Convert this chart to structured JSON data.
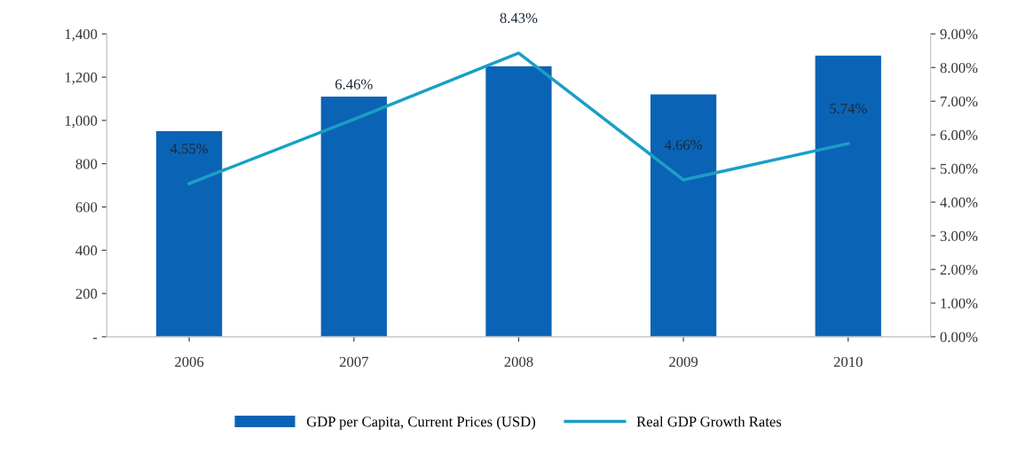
{
  "chart_data": {
    "type": "bar",
    "categories": [
      "2006",
      "2007",
      "2008",
      "2009",
      "2010"
    ],
    "series": [
      {
        "name": "GDP per Capita, Current Prices (USD)",
        "color": "#0b63b5",
        "values": [
          950,
          1110,
          1250,
          1120,
          1300
        ]
      },
      {
        "name": "Real GDP Growth Rates",
        "type": "line",
        "axis": "y2",
        "color": "#1a9fc6",
        "values": [
          4.55,
          6.46,
          8.43,
          4.66,
          5.74
        ],
        "value_labels": [
          "4.55%",
          "6.46%",
          "8.43%",
          "4.66%",
          "5.74%"
        ]
      }
    ],
    "ylim": [
      0,
      1400
    ],
    "yticks": [
      {
        "value": 0,
        "label": "-"
      },
      {
        "value": 200,
        "label": "200"
      },
      {
        "value": 400,
        "label": "400"
      },
      {
        "value": 600,
        "label": "600"
      },
      {
        "value": 800,
        "label": "800"
      },
      {
        "value": 1000,
        "label": "1,000"
      },
      {
        "value": 1200,
        "label": "1,200"
      },
      {
        "value": 1400,
        "label": "1,400"
      }
    ],
    "y2lim": [
      0,
      9
    ],
    "y2ticks": [
      {
        "value": 0,
        "label": "0.00%"
      },
      {
        "value": 1,
        "label": "1.00%"
      },
      {
        "value": 2,
        "label": "2.00%"
      },
      {
        "value": 3,
        "label": "3.00%"
      },
      {
        "value": 4,
        "label": "4.00%"
      },
      {
        "value": 5,
        "label": "5.00%"
      },
      {
        "value": 6,
        "label": "6.00%"
      },
      {
        "value": 7,
        "label": "7.00%"
      },
      {
        "value": 8,
        "label": "8.00%"
      },
      {
        "value": 9,
        "label": "9.00%"
      }
    ],
    "grid": false,
    "legend": "bottom",
    "marker": "none",
    "line_style": "solid"
  }
}
